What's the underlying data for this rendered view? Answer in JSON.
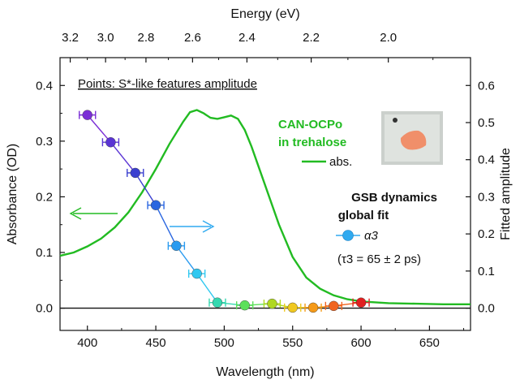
{
  "chart_data": {
    "type": "line",
    "xlabel": "Wavelength (nm)",
    "xlim": [
      380,
      680
    ],
    "x_ticks": [
      400,
      450,
      500,
      550,
      600,
      650
    ],
    "ylabel": "Absorbance (OD)",
    "ylim": [
      -0.04,
      0.45
    ],
    "y_ticks": [
      "0.0",
      "0.1",
      "0.2",
      "0.3",
      "0.4"
    ],
    "y2label": "Fitted amplitude",
    "y2_ticks": [
      "0.0",
      "0.1",
      "0.2",
      "0.3",
      "0.4",
      "0.5",
      "0.6"
    ],
    "top_label": "Energy (eV)",
    "top_ticks": [
      "3.2",
      "3.0",
      "2.8",
      "2.6",
      "2.4",
      "2.2",
      "2.0"
    ],
    "top_tick_energies": [
      3.2,
      3.0,
      2.8,
      2.6,
      2.4,
      2.2,
      2.0
    ],
    "annotation": "Points: S*-like features amplitude",
    "legend_abs_title_line1": "CAN-OCPo",
    "legend_abs_title_line2": "in trehalose",
    "legend_abs_label": "abs.",
    "legend_fit_title_line1": "GSB dynamics",
    "legend_fit_title_line2": "global fit",
    "legend_fit_label": "α3",
    "legend_fit_tau": "(τ3 = 65 ± 2 ps)",
    "abs_color": "#22bb22",
    "series": [
      {
        "name": "abs.",
        "x": [
          380,
          390,
          400,
          410,
          420,
          430,
          440,
          450,
          460,
          470,
          475,
          480,
          485,
          490,
          495,
          500,
          505,
          510,
          515,
          520,
          530,
          540,
          550,
          560,
          570,
          580,
          590,
          600,
          620,
          640,
          660,
          680
        ],
        "y": [
          0.094,
          0.1,
          0.111,
          0.125,
          0.145,
          0.172,
          0.208,
          0.25,
          0.295,
          0.335,
          0.352,
          0.356,
          0.35,
          0.342,
          0.34,
          0.343,
          0.346,
          0.34,
          0.32,
          0.29,
          0.22,
          0.15,
          0.092,
          0.055,
          0.035,
          0.023,
          0.016,
          0.012,
          0.009,
          0.008,
          0.007,
          0.007
        ]
      },
      {
        "name": "α3",
        "x": [
          400,
          417,
          435,
          450,
          465,
          480,
          495,
          515,
          535,
          550,
          565,
          580,
          600
        ],
        "y": [
          0.347,
          0.298,
          0.243,
          0.185,
          0.112,
          0.062,
          0.01,
          0.005,
          0.008,
          0.001,
          0.001,
          0.004,
          0.01
        ],
        "colors": [
          "#7b2fd6",
          "#5a34d4",
          "#3a3fd0",
          "#2a66e0",
          "#2a9bf0",
          "#30c8f0",
          "#34d8b0",
          "#5ce05a",
          "#b0d820",
          "#f0c820",
          "#f59a18",
          "#f06420",
          "#e02020"
        ]
      }
    ]
  }
}
